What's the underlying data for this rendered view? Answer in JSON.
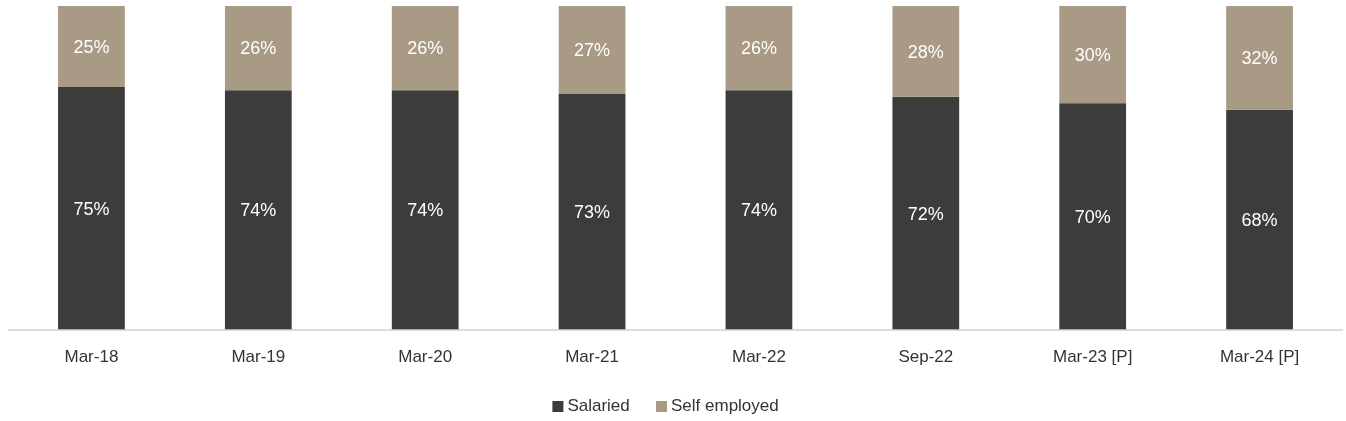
{
  "chart_data": {
    "type": "bar",
    "stacked": true,
    "categories": [
      "Mar-18",
      "Mar-19",
      "Mar-20",
      "Mar-21",
      "Mar-22",
      "Sep-22",
      "Mar-23 [P]",
      "Mar-24 [P]"
    ],
    "series": [
      {
        "name": "Salaried",
        "color": "#3c3c3a",
        "values": [
          75,
          74,
          74,
          73,
          74,
          72,
          70,
          68
        ],
        "value_labels": [
          "75%",
          "74%",
          "74%",
          "73%",
          "74%",
          "72%",
          "70%",
          "68%"
        ]
      },
      {
        "name": "Self employed",
        "color": "#a89a85",
        "values": [
          25,
          26,
          26,
          27,
          26,
          28,
          30,
          32
        ],
        "value_labels": [
          "25%",
          "26%",
          "26%",
          "27%",
          "26%",
          "28%",
          "30%",
          "32%"
        ]
      }
    ],
    "legend": "bottom",
    "tick_labels": "x"
  }
}
